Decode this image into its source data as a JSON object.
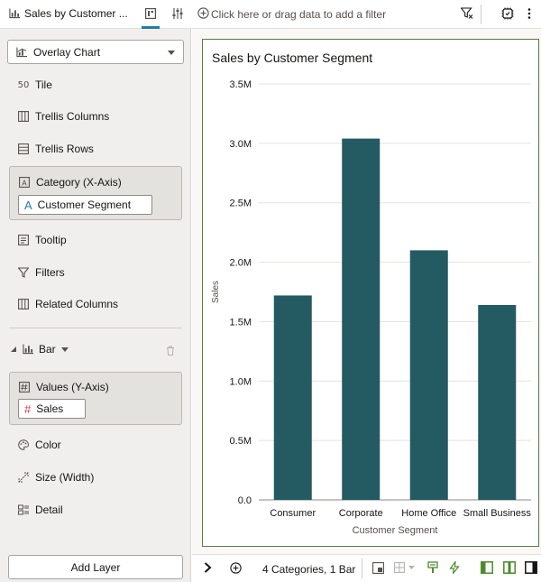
{
  "left_panel": {
    "title": "Sales by Customer ...",
    "viz_type": "Overlay Chart",
    "grammar": {
      "tile": "Tile",
      "trellis_columns": "Trellis Columns",
      "trellis_rows": "Trellis Rows",
      "category": "Category (X-Axis)",
      "category_value": "Customer Segment",
      "tooltip": "Tooltip",
      "filters": "Filters",
      "related_columns": "Related Columns"
    },
    "layer": {
      "name": "Bar",
      "values": "Values (Y-Axis)",
      "values_value": "Sales",
      "color": "Color",
      "size": "Size (Width)",
      "detail": "Detail"
    },
    "add_layer": "Add Layer"
  },
  "filter_bar": {
    "placeholder": "Click here or drag data to add a filter"
  },
  "status_bar": {
    "text": "4 Categories, 1 Bar"
  },
  "colors": {
    "bar": "#245a62",
    "accent": "#227e9e",
    "frame": "#5c7a46",
    "green": "#4b8a2a"
  },
  "chart_data": {
    "type": "bar",
    "title": "Sales by Customer Segment",
    "xlabel": "Customer Segment",
    "ylabel": "Sales",
    "categories": [
      "Consumer",
      "Corporate",
      "Home Office",
      "Small Business"
    ],
    "values": [
      1720000,
      3040000,
      2100000,
      1640000
    ],
    "ylim": [
      0,
      3500000
    ],
    "yticks": [
      "0.0",
      "0.5M",
      "1.0M",
      "1.5M",
      "2.0M",
      "2.5M",
      "3.0M",
      "3.5M"
    ],
    "grid": true,
    "legend": "none"
  }
}
